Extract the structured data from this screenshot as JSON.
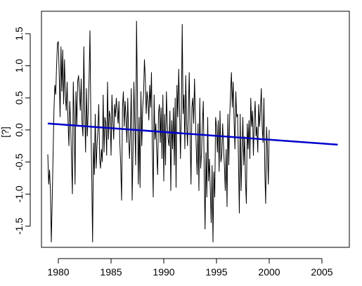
{
  "chart_data": {
    "type": "line",
    "title": "",
    "xlabel": "",
    "ylabel": "[?]",
    "xlim": [
      1978.4,
      2007.6
    ],
    "ylim": [
      -1.83,
      1.85
    ],
    "x_ticks": [
      1980,
      1985,
      1990,
      1995,
      2000,
      2005
    ],
    "x_tick_labels": [
      "1980",
      "1985",
      "1990",
      "1995",
      "2000",
      "2005"
    ],
    "y_ticks": [
      -1.5,
      -1.0,
      -0.5,
      0.0,
      0.5,
      1.0,
      1.5
    ],
    "y_tick_labels": [
      "-1.5",
      "-1.0",
      "-0.5",
      "0.0",
      "0.5",
      "1.0",
      "1.5"
    ],
    "grid": false,
    "legend": "none",
    "series": [
      {
        "role": "monthly-anomaly",
        "color": "#000000",
        "x_start": 1979.0,
        "x_step": 0.08333,
        "values": [
          -0.38,
          -0.85,
          -0.62,
          -0.95,
          -1.75,
          -1.1,
          -0.4,
          0.3,
          0.7,
          0.55,
          1.0,
          1.35,
          1.38,
          0.85,
          0.2,
          1.3,
          0.6,
          1.25,
          0.4,
          1.1,
          0.55,
          0.3,
          0.75,
          0.15,
          -0.25,
          0.45,
          0.1,
          -0.45,
          -1.0,
          0.75,
          0.2,
          -0.85,
          0.6,
          0.05,
          0.75,
          0.85,
          0.6,
          0.3,
          0.8,
          0.1,
          -0.1,
          1.3,
          0.3,
          -0.35,
          0.65,
          -0.1,
          0.3,
          0.8,
          1.55,
          0.15,
          -0.7,
          -1.75,
          -0.2,
          -0.7,
          0.25,
          -0.6,
          -0.25,
          0.0,
          0.4,
          -0.45,
          -0.6,
          -0.3,
          -0.5,
          0.55,
          -0.35,
          0.2,
          0.1,
          -0.4,
          0.75,
          -0.15,
          0.3,
          0.2,
          -0.4,
          0.55,
          0.15,
          -0.15,
          0.4,
          0.2,
          0.5,
          0.3,
          0.1,
          0.45,
          -0.2,
          -0.55,
          -1.1,
          0.35,
          0.6,
          0.05,
          0.45,
          0.2,
          -0.2,
          0.5,
          -0.1,
          -0.45,
          0.0,
          0.65,
          -1.1,
          -0.35,
          0.75,
          0.1,
          -0.55,
          1.7,
          0.55,
          -0.85,
          0.2,
          -0.9,
          0.6,
          -0.25,
          0.35,
          0.55,
          1.1,
          0.8,
          0.25,
          0.6,
          0.45,
          0.15,
          0.7,
          0.35,
          0.9,
          -0.3,
          -1.05,
          0.55,
          -0.15,
          0.1,
          -0.35,
          -0.7,
          0.25,
          0.4,
          -0.2,
          0.35,
          -0.45,
          0.55,
          -0.8,
          0.25,
          -0.55,
          0.6,
          0.1,
          -0.15,
          -0.25,
          0.3,
          -0.95,
          0.15,
          -0.3,
          0.35,
          -0.55,
          0.5,
          -0.9,
          0.7,
          0.2,
          0.95,
          0.3,
          -0.45,
          0.3,
          1.65,
          0.25,
          0.55,
          -0.3,
          0.85,
          0.1,
          -0.25,
          0.3,
          0.9,
          -0.1,
          -0.85,
          0.35,
          0.5,
          0.1,
          0.8,
          0.2,
          -0.3,
          -0.7,
          0.1,
          -0.95,
          0.5,
          -0.6,
          -0.35,
          0.1,
          0.45,
          -0.65,
          -1.55,
          -0.35,
          -1.05,
          0.2,
          -0.8,
          -0.45,
          -0.95,
          -1.45,
          -0.55,
          -1.75,
          -0.65,
          -1.05,
          0.2,
          0.05,
          -0.35,
          0.15,
          -0.65,
          0.3,
          -0.5,
          -0.4,
          0.1,
          -0.25,
          -0.55,
          -0.95,
          -0.3,
          -1.2,
          0.25,
          -0.55,
          0.2,
          0.55,
          0.9,
          0.35,
          0.75,
          0.15,
          -0.3,
          0.6,
          0.2,
          0.25,
          -0.45,
          -1.3,
          0.25,
          -0.95,
          -0.35,
          0.2,
          -0.55,
          -0.1,
          -0.8,
          -1.15,
          0.1,
          -0.3,
          0.15,
          -0.45,
          0.5,
          0.05,
          0.3,
          -0.4,
          0.15,
          0.45,
          -0.1,
          0.05,
          -0.35,
          0.4,
          0.05,
          0.3,
          0.65,
          0.05,
          -0.2,
          0.5,
          -0.65,
          -1.15,
          0.05,
          -0.3,
          -0.85,
          0.0
        ]
      },
      {
        "role": "linear-trend",
        "color": "#0000cc",
        "x": [
          1979.0,
          2006.5
        ],
        "values": [
          0.1,
          -0.23
        ]
      }
    ]
  }
}
